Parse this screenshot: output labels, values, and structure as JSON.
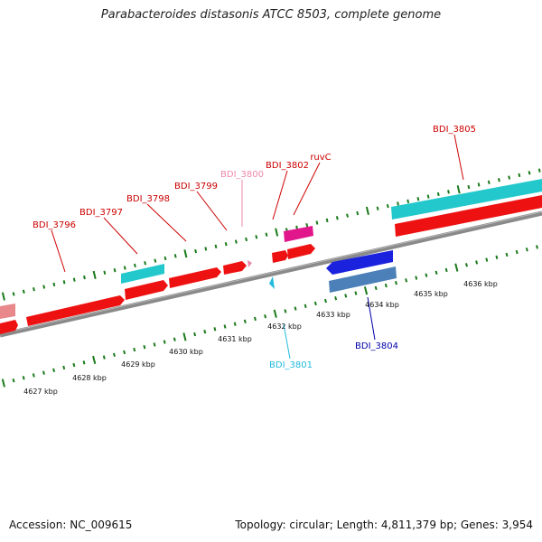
{
  "title": "Parabacteroides distasonis ATCC 8503, complete genome",
  "footer": {
    "accession": "Accession: NC_009615",
    "summary": "Topology: circular; Length: 4,811,379 bp; Genes: 3,954"
  },
  "scale_labels": [
    "4627 kbp",
    "4628 kbp",
    "4629 kbp",
    "4630 kbp",
    "4631 kbp",
    "4632 kbp",
    "4633 kbp",
    "4634 kbp",
    "4635 kbp",
    "4636 kbp"
  ],
  "gene_labels": [
    {
      "text": "BDI_3796",
      "color": "#cc0000"
    },
    {
      "text": "BDI_3797",
      "color": "#cc0000"
    },
    {
      "text": "BDI_3798",
      "color": "#cc0000"
    },
    {
      "text": "BDI_3799",
      "color": "#cc0000"
    },
    {
      "text": "BDI_3800",
      "color": "#ee88aa"
    },
    {
      "text": "BDI_3802",
      "color": "#cc0000"
    },
    {
      "text": "ruvC",
      "color": "#cc0000"
    },
    {
      "text": "BDI_3805",
      "color": "#cc0000"
    },
    {
      "text": "BDI_3801",
      "color": "#22bbdd"
    },
    {
      "text": "BDI_3804",
      "color": "#0000aa"
    }
  ],
  "colors": {
    "cds": "#ee1111",
    "rna": "#22c8cc",
    "pseudo": "#e8888a",
    "misc": "#e0168a",
    "reverse": "#1a22dd",
    "reverse_alt": "#4b80b8",
    "backbone": "#8a8a8a",
    "ticks": "#1a7a1a"
  }
}
